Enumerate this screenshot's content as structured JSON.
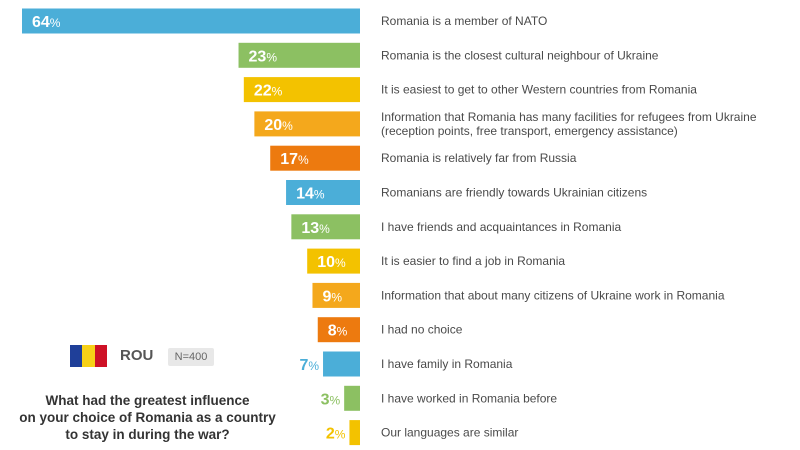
{
  "chart_data": {
    "type": "bar",
    "orientation": "horizontal",
    "categories": [
      "Romania is a member of NATO",
      "Romania is the closest cultural neighbour of Ukraine",
      "It is easiest to get to other Western countries from Romania",
      "Information that Romania has many facilities for refugees from Ukraine\n(reception points, free transport, emergency assistance)",
      "Romania is relatively far from Russia",
      "Romanians are friendly towards Ukrainian citizens",
      "I have friends and acquaintances in Romania",
      "It is easier to find a job in Romania",
      "Information that about many citizens of Ukraine work in Romania",
      "I had no choice",
      "I have family in Romania",
      "I have worked in Romania before",
      "Our languages are similar"
    ],
    "values": [
      64,
      23,
      22,
      20,
      17,
      14,
      13,
      10,
      9,
      8,
      7,
      3,
      2
    ],
    "colors": [
      "#4baed8",
      "#8cc062",
      "#f3c200",
      "#f4a81c",
      "#ed7a0f",
      "#4baed8",
      "#8cc062",
      "#f3c200",
      "#f4a81c",
      "#ed7a0f",
      "#4baed8",
      "#8cc062",
      "#f3c200"
    ],
    "value_suffix": "%",
    "xlim": [
      0,
      64
    ]
  },
  "panel": {
    "flag_colors": [
      "#1f3f99",
      "#f7d117",
      "#ce1126"
    ],
    "country_code": "ROU",
    "sample_size": "N=400",
    "question": "What had the greatest influence\non your choice of Romania as a country\nto stay in during the war?"
  }
}
